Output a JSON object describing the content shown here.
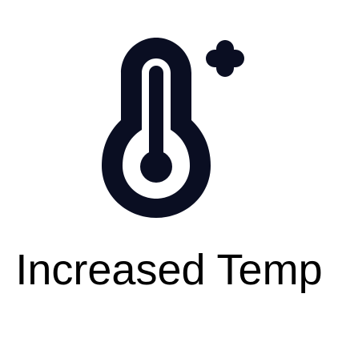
{
  "icon": {
    "name": "thermometer-plus-icon",
    "color": "#0a0e22"
  },
  "label": {
    "text": "Increased Temp",
    "color": "#000000"
  }
}
